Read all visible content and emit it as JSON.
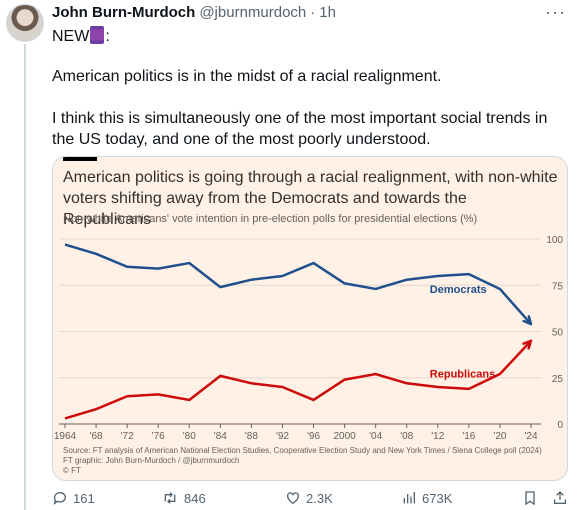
{
  "tweet": {
    "author_name": "John Burn-Murdoch",
    "handle": "@jburnmurdoch",
    "separator": "·",
    "time": "1h",
    "line1": "NEW",
    "line1_suffix": ":",
    "line2": "American politics is in the midst of a racial realignment.",
    "line3": "I think this is simultaneously one of the most important social trends in the US today, and one of the most poorly understood."
  },
  "card": {
    "title": "American politics is going through a racial realignment, with non-white voters shifting away from the Democrats and towards the Republicans",
    "subtitle": "Non-white Americans' vote intention in pre-election polls for presidential elections (%)",
    "source": "Source: FT analysis of American National Election Studies, Cooperative Election Study and New York Times / Siena College poll (2024)",
    "credit": "FT graphic: John Burn-Murdoch / @jburnmurdoch",
    "logo": "© FT"
  },
  "chart_data": {
    "type": "line",
    "x": [
      1964,
      1968,
      1972,
      1976,
      1980,
      1984,
      1988,
      1992,
      1996,
      2000,
      2004,
      2008,
      2012,
      2016,
      2020,
      2024
    ],
    "x_tick_labels": [
      "1964",
      "'68",
      "'72",
      "'76",
      "'80",
      "'84",
      "'88",
      "'92",
      "'96",
      "2000",
      "'04",
      "'08",
      "'12",
      "'16",
      "'20",
      "'24"
    ],
    "ylim": [
      0,
      100
    ],
    "y_ticks": [
      0,
      25,
      50,
      75,
      100
    ],
    "grid": true,
    "series": [
      {
        "name": "Democrats",
        "color": "#1f4f8c",
        "values": [
          97,
          92,
          85,
          84,
          87,
          74,
          78,
          80,
          87,
          76,
          73,
          78,
          80,
          81,
          73,
          54
        ]
      },
      {
        "name": "Republicans",
        "color": "#cc0a0a",
        "values": [
          3,
          8,
          15,
          16,
          13,
          26,
          22,
          20,
          13,
          24,
          27,
          22,
          20,
          19,
          27,
          45
        ]
      }
    ]
  },
  "actions": {
    "replies": "161",
    "retweets": "846",
    "likes": "2.3K",
    "views": "673K"
  }
}
